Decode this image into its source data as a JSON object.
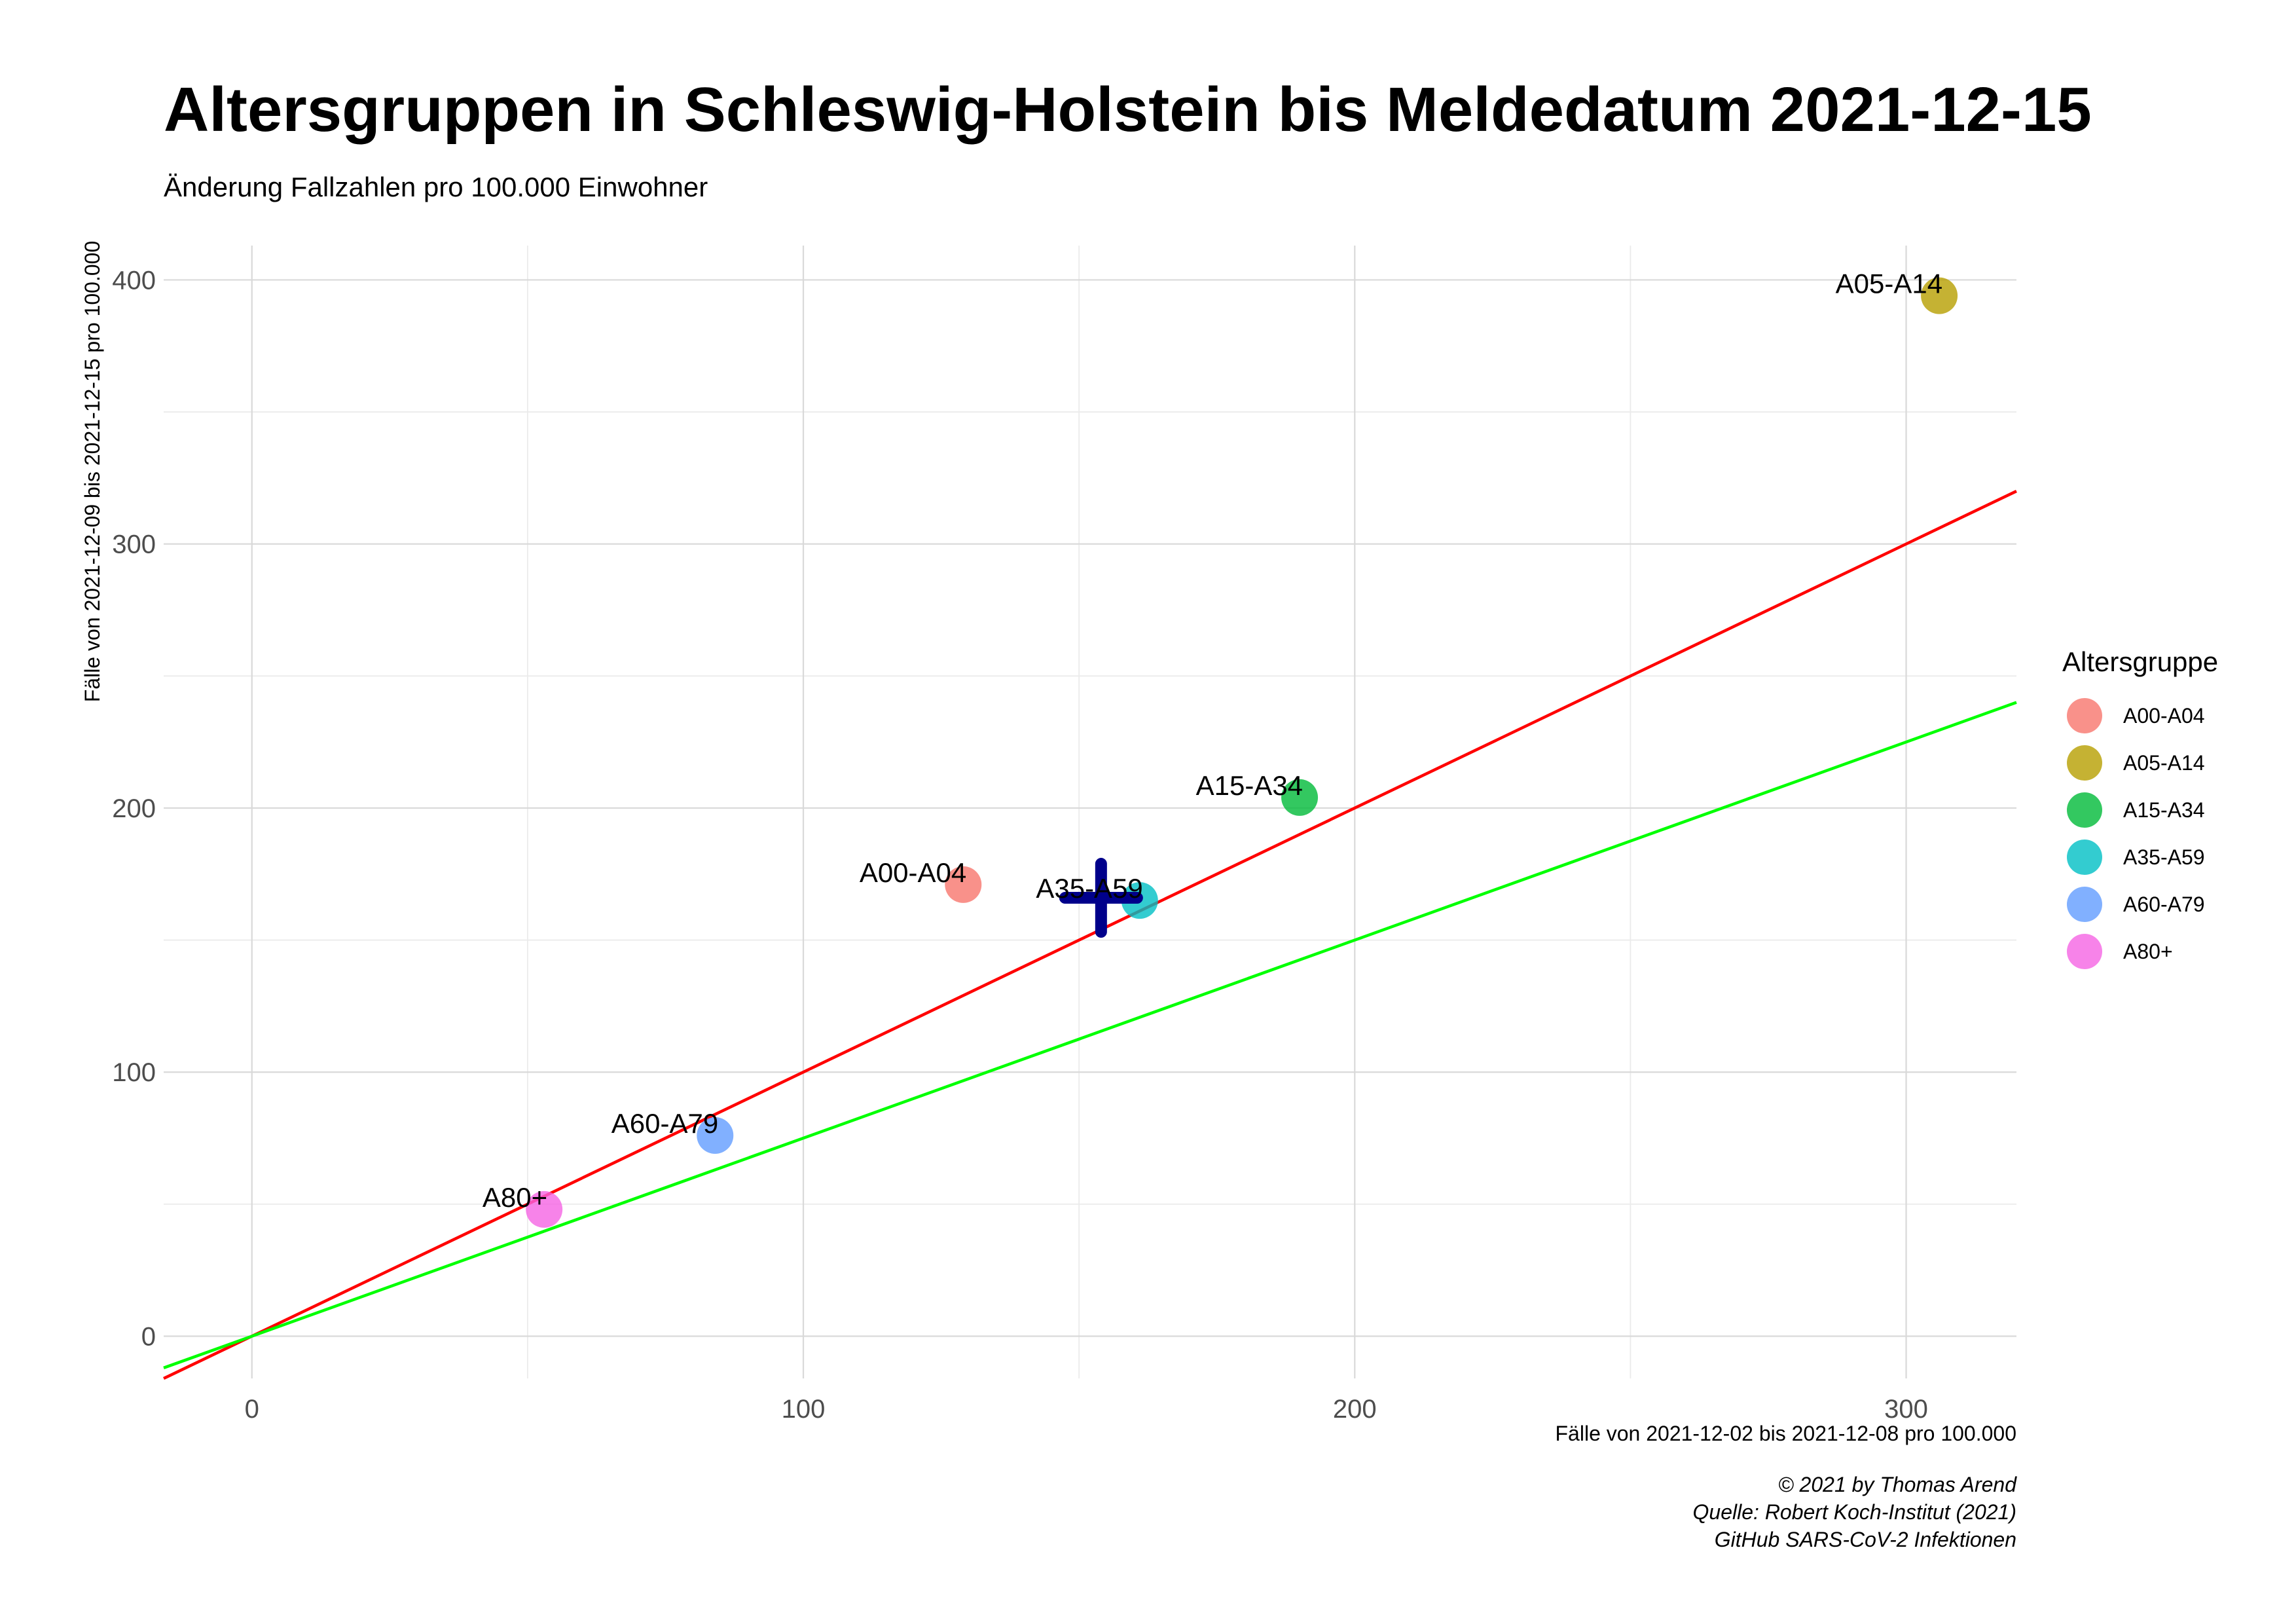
{
  "chart_data": {
    "type": "scatter",
    "title": "Altersgruppen in Schleswig-Holstein bis Meldedatum 2021-12-15",
    "subtitle": "Änderung Fallzahlen pro 100.000 Einwohner",
    "xlabel": "Fälle von 2021-12-02 bis 2021-12-08 pro 100.000",
    "ylabel": "Fälle von 2021-12-09 bis 2021-12-15 pro 100.000",
    "xlim": [
      -16,
      320
    ],
    "ylim": [
      -16,
      413
    ],
    "x_ticks": [
      0,
      100,
      200,
      300
    ],
    "y_ticks": [
      0,
      100,
      200,
      300,
      400
    ],
    "grid": true,
    "legend_title": "Altersgruppe",
    "legend_position": "right",
    "points": [
      {
        "label": "A00-A04",
        "x": 129,
        "y": 171,
        "color": "#F8766D"
      },
      {
        "label": "A05-A14",
        "x": 306,
        "y": 394,
        "color": "#B79F00"
      },
      {
        "label": "A15-A34",
        "x": 190,
        "y": 204,
        "color": "#00BA38"
      },
      {
        "label": "A35-A59",
        "x": 161,
        "y": 165,
        "color": "#00BFC4"
      },
      {
        "label": "A60-A79",
        "x": 84,
        "y": 76,
        "color": "#619CFF"
      },
      {
        "label": "A80+",
        "x": 53,
        "y": 48,
        "color": "#F564E3"
      }
    ],
    "overall_marker": {
      "x": 154,
      "y": 166,
      "color": "#00008B"
    },
    "reference_lines": [
      {
        "slope": 1.0,
        "intercept": 0,
        "color": "#FF0000"
      },
      {
        "slope": 0.75,
        "intercept": 0,
        "color": "#00FF00"
      }
    ]
  },
  "caption": [
    "© 2021 by Thomas Arend",
    "Quelle: Robert Koch-Institut (2021)",
    "GitHub SARS-CoV-2 Infektionen"
  ]
}
